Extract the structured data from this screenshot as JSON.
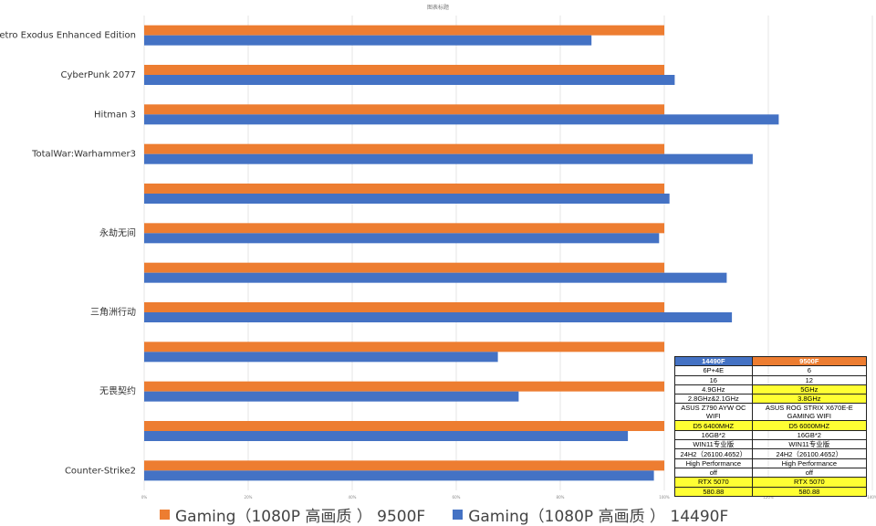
{
  "chart_data": {
    "type": "bar",
    "orientation": "horizontal",
    "title": "图表标题",
    "categories": [
      "Metro Exodus Enhanced Edition",
      "CyberPunk 2077",
      "Hitman 3",
      "TotalWar:Warhammer3",
      "",
      "永劫无间",
      "",
      "三角洲行动",
      "",
      "无畏契约",
      "",
      "Counter-Strike2"
    ],
    "series": [
      {
        "name": "Gaming（1080P 高画质 ） 9500F",
        "color": "#ed7d31",
        "values": [
          100,
          100,
          100,
          100,
          100,
          100,
          100,
          100,
          100,
          100,
          100,
          100
        ]
      },
      {
        "name": "Gaming（1080P 高画质 ） 14490F",
        "color": "#4472c4",
        "values": [
          86,
          102,
          122,
          117,
          101,
          99,
          112,
          113,
          68,
          72,
          93,
          98
        ]
      }
    ],
    "xlim": [
      0,
      140
    ],
    "xticks": [
      "0%",
      "20%",
      "40%",
      "60%",
      "80%",
      "100%",
      "120%",
      "140%"
    ],
    "grid": true,
    "legend_position": "bottom"
  },
  "spec_table": {
    "headers": [
      {
        "text": "14490F",
        "color": "#4472c4"
      },
      {
        "text": "9500F",
        "color": "#ed7d31"
      }
    ],
    "rows": [
      {
        "a": "6P+4E",
        "b": "6",
        "hl_a": false,
        "hl_b": false
      },
      {
        "a": "16",
        "b": "12",
        "hl_a": false,
        "hl_b": false
      },
      {
        "a": "4.9GHz",
        "b": "5GHz",
        "hl_a": false,
        "hl_b": true
      },
      {
        "a": "2.8GHz&2.1GHz",
        "b": "3.8GHz",
        "hl_a": false,
        "hl_b": true
      },
      {
        "a": "ASUS Z790 AYW OC WIFI",
        "b": "ASUS ROG STRIX X670E-E GAMING WIFI",
        "hl_a": false,
        "hl_b": false
      },
      {
        "a": "D5 6400MHZ",
        "b": "D5 6000MHZ",
        "hl_a": true,
        "hl_b": true
      },
      {
        "a": "16GB*2",
        "b": "16GB*2",
        "hl_a": false,
        "hl_b": false
      },
      {
        "a": "WIN11专业版",
        "b": "WIN11专业版",
        "hl_a": false,
        "hl_b": false
      },
      {
        "a": "24H2（26100.4652）",
        "b": "24H2（26100.4652）",
        "hl_a": false,
        "hl_b": false
      },
      {
        "a": "High Performance",
        "b": "High Performance",
        "hl_a": false,
        "hl_b": false
      },
      {
        "a": "off",
        "b": "off",
        "hl_a": false,
        "hl_b": false
      },
      {
        "a": "RTX 5070",
        "b": "RTX 5070",
        "hl_a": true,
        "hl_b": true
      },
      {
        "a": "580.88",
        "b": "580.88",
        "hl_a": true,
        "hl_b": true
      }
    ]
  }
}
